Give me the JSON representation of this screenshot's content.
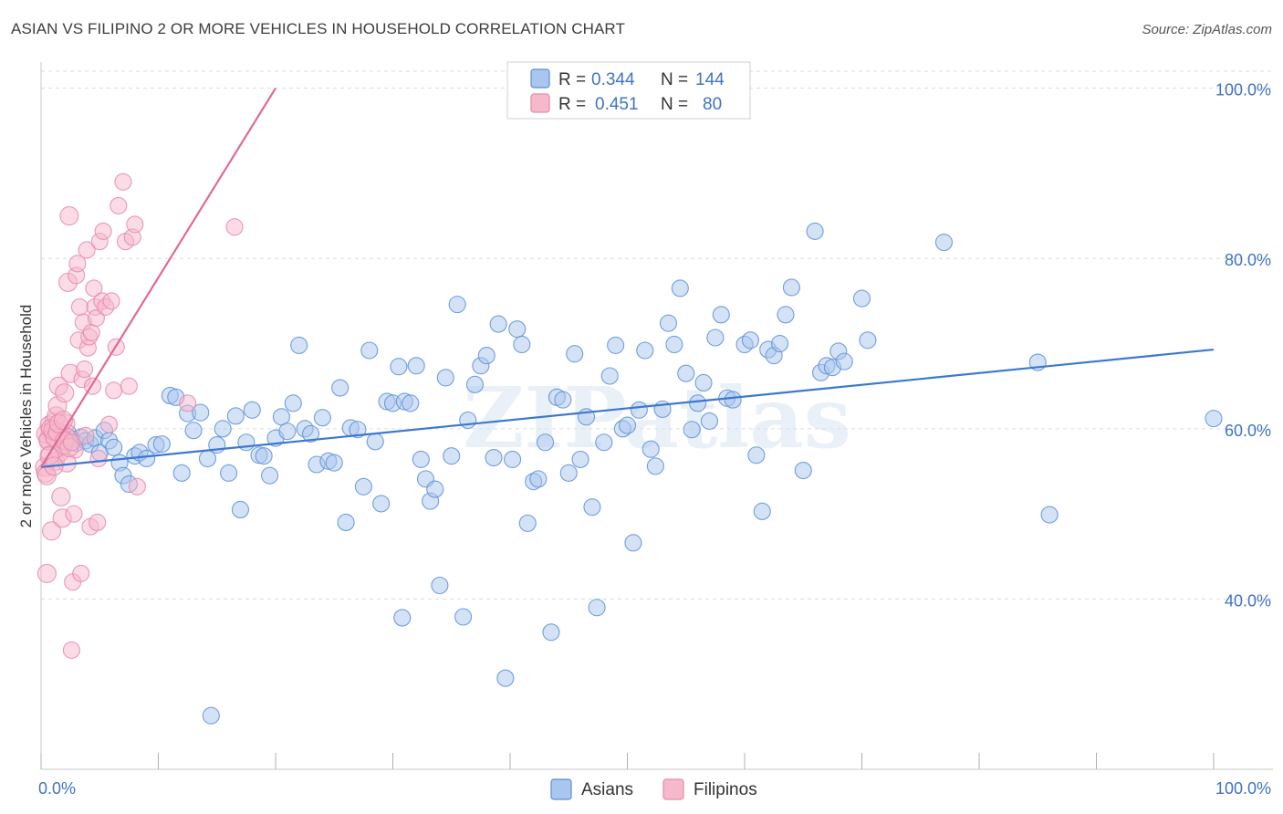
{
  "title": "ASIAN VS FILIPINO 2 OR MORE VEHICLES IN HOUSEHOLD CORRELATION CHART",
  "source": "Source: ZipAtlas.com",
  "watermark": "ZIPatlas",
  "colors": {
    "asian_fill": "#a9c6ee",
    "asian_stroke": "#5b8fd8",
    "asian_line": "#3b78d0",
    "filipino_fill": "#f7b8cc",
    "filipino_stroke": "#e58aa8",
    "filipino_line": "#e0689a",
    "grid": "#dcdcdc",
    "tick_text": "#3f73c4"
  },
  "legend": {
    "rows": [
      {
        "r_label": "R =",
        "r_value": "0.344",
        "n_label": "N =",
        "n_value": "144"
      },
      {
        "r_label": "R =",
        "r_value": "0.451",
        "n_label": "N =",
        "n_value": "80"
      }
    ]
  },
  "bottom_legend": [
    "Asians",
    "Filipinos"
  ],
  "chart_data": {
    "type": "scatter",
    "title": "ASIAN VS FILIPINO 2 OR MORE VEHICLES IN HOUSEHOLD CORRELATION CHART",
    "xlabel": "",
    "ylabel": "2 or more Vehicles in Household",
    "xlim": [
      0,
      100
    ],
    "ylim": [
      20,
      102
    ],
    "x_tick_labels": [
      "0.0%",
      "100.0%"
    ],
    "y_ticks": [
      40,
      60,
      80,
      100
    ],
    "y_tick_labels": [
      "40.0%",
      "60.0%",
      "80.0%",
      "100.0%"
    ],
    "grid": true,
    "legend_placement": "top-center",
    "series": [
      {
        "name": "Asians",
        "R": 0.344,
        "N": 144,
        "trend": {
          "x": [
            0,
            100
          ],
          "y": [
            55.5,
            69.3
          ]
        },
        "points": [
          [
            1.2,
            59.8
          ],
          [
            1.5,
            58.5
          ],
          [
            1.8,
            59.2
          ],
          [
            2.0,
            58.0
          ],
          [
            2.3,
            59.5
          ],
          [
            2.6,
            58.8
          ],
          [
            3.0,
            58.3
          ],
          [
            3.4,
            59.0
          ],
          [
            3.8,
            58.6
          ],
          [
            4.2,
            58.2
          ],
          [
            4.6,
            58.9
          ],
          [
            5.0,
            57.2
          ],
          [
            5.4,
            59.8
          ],
          [
            5.8,
            58.6
          ],
          [
            6.2,
            57.8
          ],
          [
            6.7,
            56.0
          ],
          [
            7.0,
            54.5
          ],
          [
            7.5,
            53.5
          ],
          [
            8.0,
            56.8
          ],
          [
            8.4,
            57.2
          ],
          [
            9.0,
            56.5
          ],
          [
            9.8,
            58.1
          ],
          [
            10.3,
            58.2
          ],
          [
            11.0,
            63.9
          ],
          [
            11.5,
            63.7
          ],
          [
            12.0,
            54.8
          ],
          [
            12.5,
            61.8
          ],
          [
            13.0,
            59.8
          ],
          [
            13.6,
            61.9
          ],
          [
            14.2,
            56.5
          ],
          [
            15.0,
            58.1
          ],
          [
            15.5,
            60.0
          ],
          [
            16.0,
            54.8
          ],
          [
            16.6,
            61.5
          ],
          [
            17.0,
            50.5
          ],
          [
            17.5,
            58.4
          ],
          [
            18.0,
            62.2
          ],
          [
            18.6,
            56.9
          ],
          [
            19.0,
            56.8
          ],
          [
            19.5,
            54.5
          ],
          [
            20.0,
            58.9
          ],
          [
            20.5,
            61.4
          ],
          [
            21.0,
            59.7
          ],
          [
            21.5,
            63.0
          ],
          [
            22.0,
            69.8
          ],
          [
            22.5,
            60.0
          ],
          [
            23.0,
            59.4
          ],
          [
            23.5,
            55.8
          ],
          [
            24.0,
            61.3
          ],
          [
            24.5,
            56.2
          ],
          [
            25.0,
            56.0
          ],
          [
            25.5,
            64.8
          ],
          [
            26.0,
            49.0
          ],
          [
            26.4,
            60.1
          ],
          [
            27.0,
            59.9
          ],
          [
            27.5,
            53.2
          ],
          [
            28.0,
            69.2
          ],
          [
            28.5,
            58.5
          ],
          [
            29.0,
            51.2
          ],
          [
            29.5,
            63.2
          ],
          [
            30.0,
            63.0
          ],
          [
            30.5,
            67.3
          ],
          [
            30.8,
            37.8
          ],
          [
            31.0,
            63.2
          ],
          [
            31.5,
            63.0
          ],
          [
            32.0,
            67.4
          ],
          [
            32.4,
            56.4
          ],
          [
            32.8,
            54.1
          ],
          [
            33.2,
            51.5
          ],
          [
            33.6,
            52.9
          ],
          [
            34.0,
            41.6
          ],
          [
            34.5,
            66.0
          ],
          [
            35.0,
            56.8
          ],
          [
            35.5,
            74.6
          ],
          [
            36.0,
            37.9
          ],
          [
            36.4,
            61.0
          ],
          [
            37.0,
            65.2
          ],
          [
            37.5,
            67.4
          ],
          [
            38.0,
            68.6
          ],
          [
            38.6,
            56.6
          ],
          [
            39.0,
            72.3
          ],
          [
            39.6,
            30.7
          ],
          [
            40.2,
            56.4
          ],
          [
            40.6,
            71.7
          ],
          [
            41.0,
            69.9
          ],
          [
            41.5,
            48.9
          ],
          [
            42.0,
            53.8
          ],
          [
            42.4,
            54.1
          ],
          [
            43.0,
            58.4
          ],
          [
            43.5,
            36.1
          ],
          [
            44.0,
            63.7
          ],
          [
            44.5,
            63.4
          ],
          [
            45.0,
            54.8
          ],
          [
            45.5,
            68.8
          ],
          [
            46.0,
            56.4
          ],
          [
            46.5,
            61.4
          ],
          [
            47.0,
            50.8
          ],
          [
            47.4,
            39.0
          ],
          [
            48.0,
            58.4
          ],
          [
            48.5,
            66.2
          ],
          [
            49.0,
            69.8
          ],
          [
            49.6,
            60.0
          ],
          [
            50.0,
            60.4
          ],
          [
            50.5,
            46.6
          ],
          [
            51.0,
            62.2
          ],
          [
            51.5,
            69.2
          ],
          [
            52.0,
            57.6
          ],
          [
            52.4,
            55.6
          ],
          [
            53.0,
            62.3
          ],
          [
            53.5,
            72.4
          ],
          [
            54.0,
            69.9
          ],
          [
            54.5,
            76.5
          ],
          [
            55.0,
            66.5
          ],
          [
            55.5,
            59.9
          ],
          [
            56.0,
            63.0
          ],
          [
            56.5,
            65.4
          ],
          [
            57.0,
            60.9
          ],
          [
            57.5,
            70.7
          ],
          [
            58.0,
            73.4
          ],
          [
            58.5,
            63.6
          ],
          [
            59.0,
            63.4
          ],
          [
            60.0,
            69.9
          ],
          [
            60.5,
            70.4
          ],
          [
            61.0,
            56.9
          ],
          [
            61.5,
            50.3
          ],
          [
            62.0,
            69.3
          ],
          [
            62.5,
            68.6
          ],
          [
            63.0,
            70.0
          ],
          [
            63.5,
            73.4
          ],
          [
            64.0,
            76.6
          ],
          [
            65.0,
            55.1
          ],
          [
            66.0,
            83.2
          ],
          [
            66.5,
            66.6
          ],
          [
            67.0,
            67.4
          ],
          [
            67.5,
            67.2
          ],
          [
            68.0,
            69.1
          ],
          [
            68.5,
            67.9
          ],
          [
            70.0,
            75.3
          ],
          [
            70.5,
            70.4
          ],
          [
            77.0,
            81.9
          ],
          [
            85.0,
            67.8
          ],
          [
            86.0,
            49.9
          ],
          [
            100.0,
            61.2
          ],
          [
            14.5,
            26.3
          ]
        ]
      },
      {
        "name": "Filipinos",
        "R": 0.451,
        "N": 80,
        "trend": {
          "x": [
            0,
            20
          ],
          "y": [
            55.5,
            100
          ]
        },
        "points": [
          [
            0.3,
            55.5
          ],
          [
            0.4,
            54.8
          ],
          [
            0.5,
            43.0
          ],
          [
            0.6,
            58.8
          ],
          [
            0.7,
            60.4
          ],
          [
            0.8,
            57.0
          ],
          [
            0.9,
            48.0
          ],
          [
            1.0,
            59.2
          ],
          [
            1.1,
            60.8
          ],
          [
            1.2,
            56.2
          ],
          [
            1.3,
            61.5
          ],
          [
            1.4,
            62.7
          ],
          [
            1.5,
            65.0
          ],
          [
            1.6,
            59.6
          ],
          [
            1.7,
            52.0
          ],
          [
            1.8,
            49.5
          ],
          [
            1.9,
            58.0
          ],
          [
            2.0,
            64.2
          ],
          [
            2.1,
            60.6
          ],
          [
            2.2,
            59.0
          ],
          [
            2.3,
            77.2
          ],
          [
            2.4,
            85.0
          ],
          [
            2.5,
            66.5
          ],
          [
            2.6,
            34.0
          ],
          [
            2.7,
            42.0
          ],
          [
            2.8,
            50.0
          ],
          [
            2.9,
            57.5
          ],
          [
            3.0,
            78.0
          ],
          [
            3.1,
            79.4
          ],
          [
            3.2,
            70.4
          ],
          [
            3.3,
            74.3
          ],
          [
            3.4,
            43.0
          ],
          [
            3.5,
            65.8
          ],
          [
            3.6,
            72.5
          ],
          [
            3.7,
            67.0
          ],
          [
            3.8,
            59.2
          ],
          [
            3.9,
            81.0
          ],
          [
            4.0,
            69.5
          ],
          [
            4.1,
            70.8
          ],
          [
            4.2,
            48.5
          ],
          [
            4.3,
            71.3
          ],
          [
            4.4,
            65.0
          ],
          [
            4.5,
            76.5
          ],
          [
            4.6,
            74.3
          ],
          [
            4.7,
            73.0
          ],
          [
            4.8,
            49.0
          ],
          [
            4.9,
            56.5
          ],
          [
            5.0,
            82.0
          ],
          [
            5.2,
            75.0
          ],
          [
            5.3,
            83.2
          ],
          [
            5.5,
            74.3
          ],
          [
            5.8,
            60.5
          ],
          [
            6.0,
            75.0
          ],
          [
            6.2,
            64.5
          ],
          [
            6.4,
            69.6
          ],
          [
            6.6,
            86.2
          ],
          [
            7.0,
            89.0
          ],
          [
            7.2,
            82.0
          ],
          [
            7.5,
            65.0
          ],
          [
            7.8,
            82.5
          ],
          [
            8.0,
            84.0
          ],
          [
            8.2,
            53.2
          ],
          [
            12.5,
            63.0
          ],
          [
            16.5,
            83.7
          ],
          [
            0.4,
            59.4
          ],
          [
            0.6,
            58.6
          ],
          [
            0.8,
            60.0
          ],
          [
            1.0,
            59.8
          ],
          [
            1.2,
            58.9
          ],
          [
            1.4,
            59.6
          ],
          [
            1.6,
            57.2
          ],
          [
            2.0,
            58.6
          ],
          [
            2.2,
            56.0
          ],
          [
            2.4,
            57.8
          ],
          [
            0.5,
            54.5
          ],
          [
            0.7,
            56.8
          ],
          [
            1.1,
            55.6
          ],
          [
            1.5,
            60.6
          ],
          [
            1.9,
            61.0
          ],
          [
            2.6,
            58.4
          ]
        ]
      }
    ]
  }
}
